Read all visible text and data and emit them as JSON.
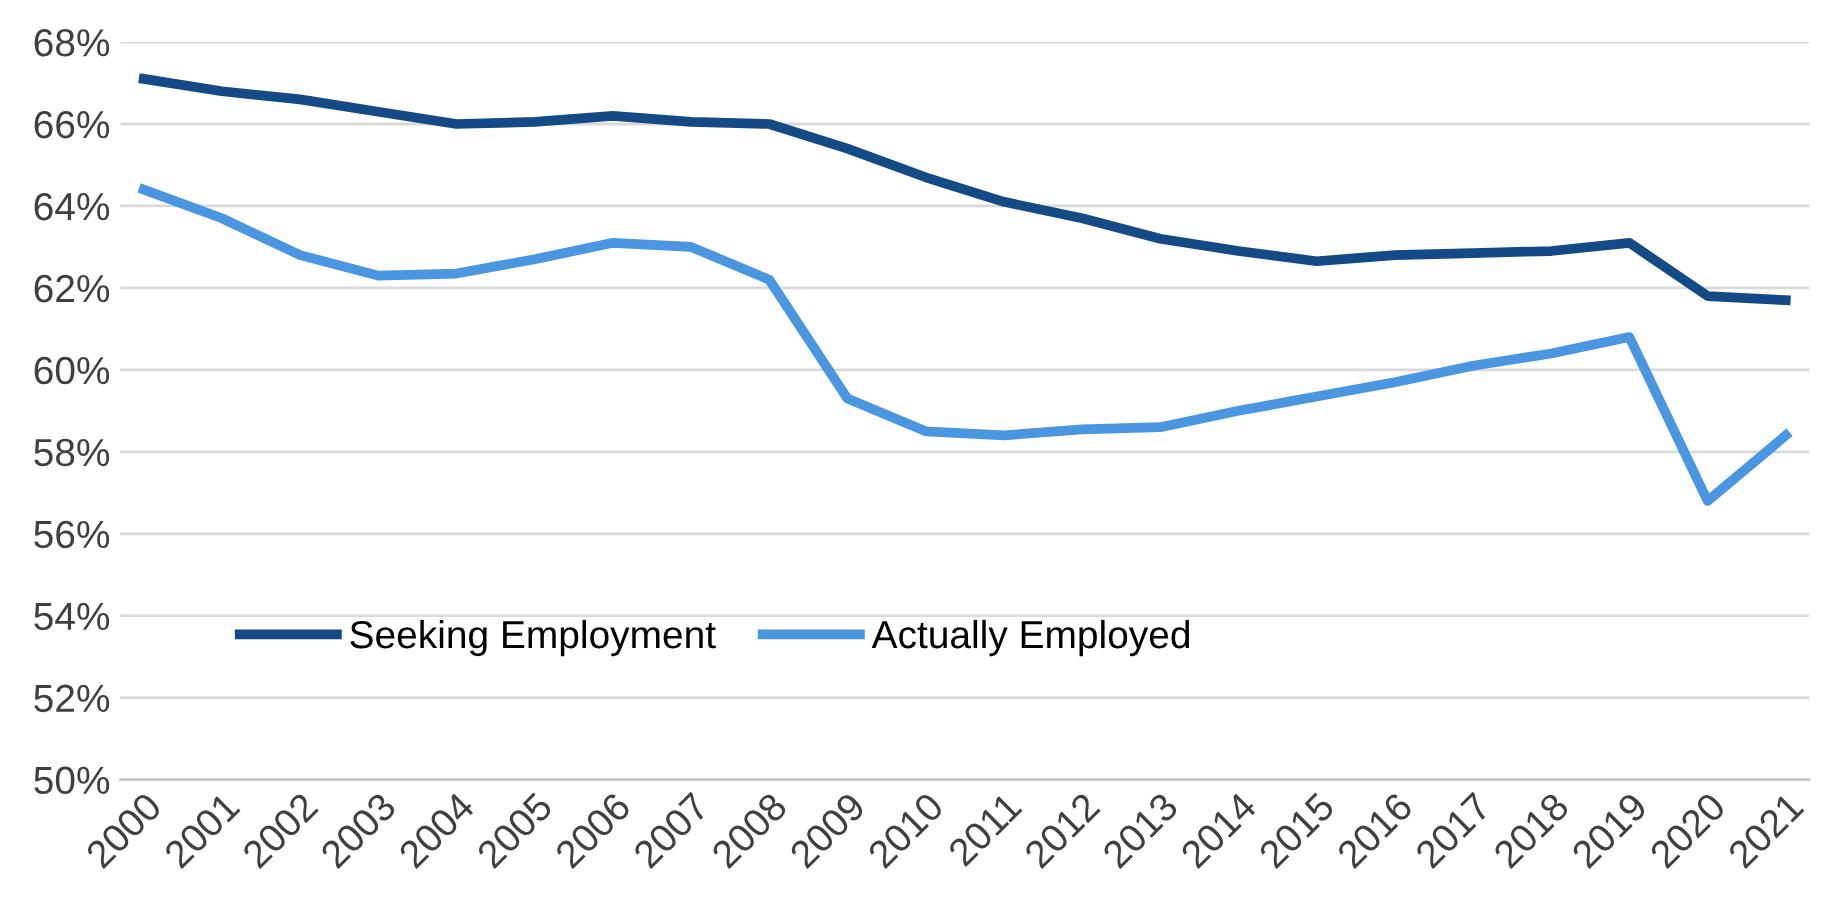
{
  "chart_data": {
    "type": "line",
    "categories": [
      "2000",
      "2001",
      "2002",
      "2003",
      "2004",
      "2005",
      "2006",
      "2007",
      "2008",
      "2009",
      "2010",
      "2011",
      "2012",
      "2013",
      "2014",
      "2015",
      "2016",
      "2017",
      "2018",
      "2019",
      "2020",
      "2021"
    ],
    "series": [
      {
        "name": "Seeking Employment",
        "color": "#144a86",
        "values": [
          67.1,
          66.8,
          66.6,
          66.3,
          66.0,
          66.05,
          66.2,
          66.05,
          66.0,
          65.4,
          64.7,
          64.1,
          63.7,
          63.2,
          62.9,
          62.65,
          62.8,
          62.85,
          62.9,
          63.1,
          61.8,
          61.7
        ]
      },
      {
        "name": "Actually Employed",
        "color": "#4a96e0",
        "values": [
          64.4,
          63.7,
          62.8,
          62.3,
          62.35,
          62.7,
          63.1,
          63.0,
          62.2,
          59.3,
          58.5,
          58.4,
          58.55,
          58.6,
          59.0,
          59.35,
          59.7,
          60.1,
          60.4,
          60.8,
          56.8,
          58.4
        ]
      }
    ],
    "ylim": [
      50,
      68
    ],
    "yticks": [
      {
        "value": 50,
        "label": "50%"
      },
      {
        "value": 52,
        "label": "52%"
      },
      {
        "value": 54,
        "label": "54%"
      },
      {
        "value": 56,
        "label": "56%"
      },
      {
        "value": 58,
        "label": "58%"
      },
      {
        "value": 60,
        "label": "60%"
      },
      {
        "value": 62,
        "label": "62%"
      },
      {
        "value": 64,
        "label": "64%"
      },
      {
        "value": 66,
        "label": "66%"
      },
      {
        "value": 68,
        "label": "68%"
      }
    ],
    "grid": "y",
    "legend": "bottom left",
    "marker": "none",
    "line_style": "solid"
  }
}
